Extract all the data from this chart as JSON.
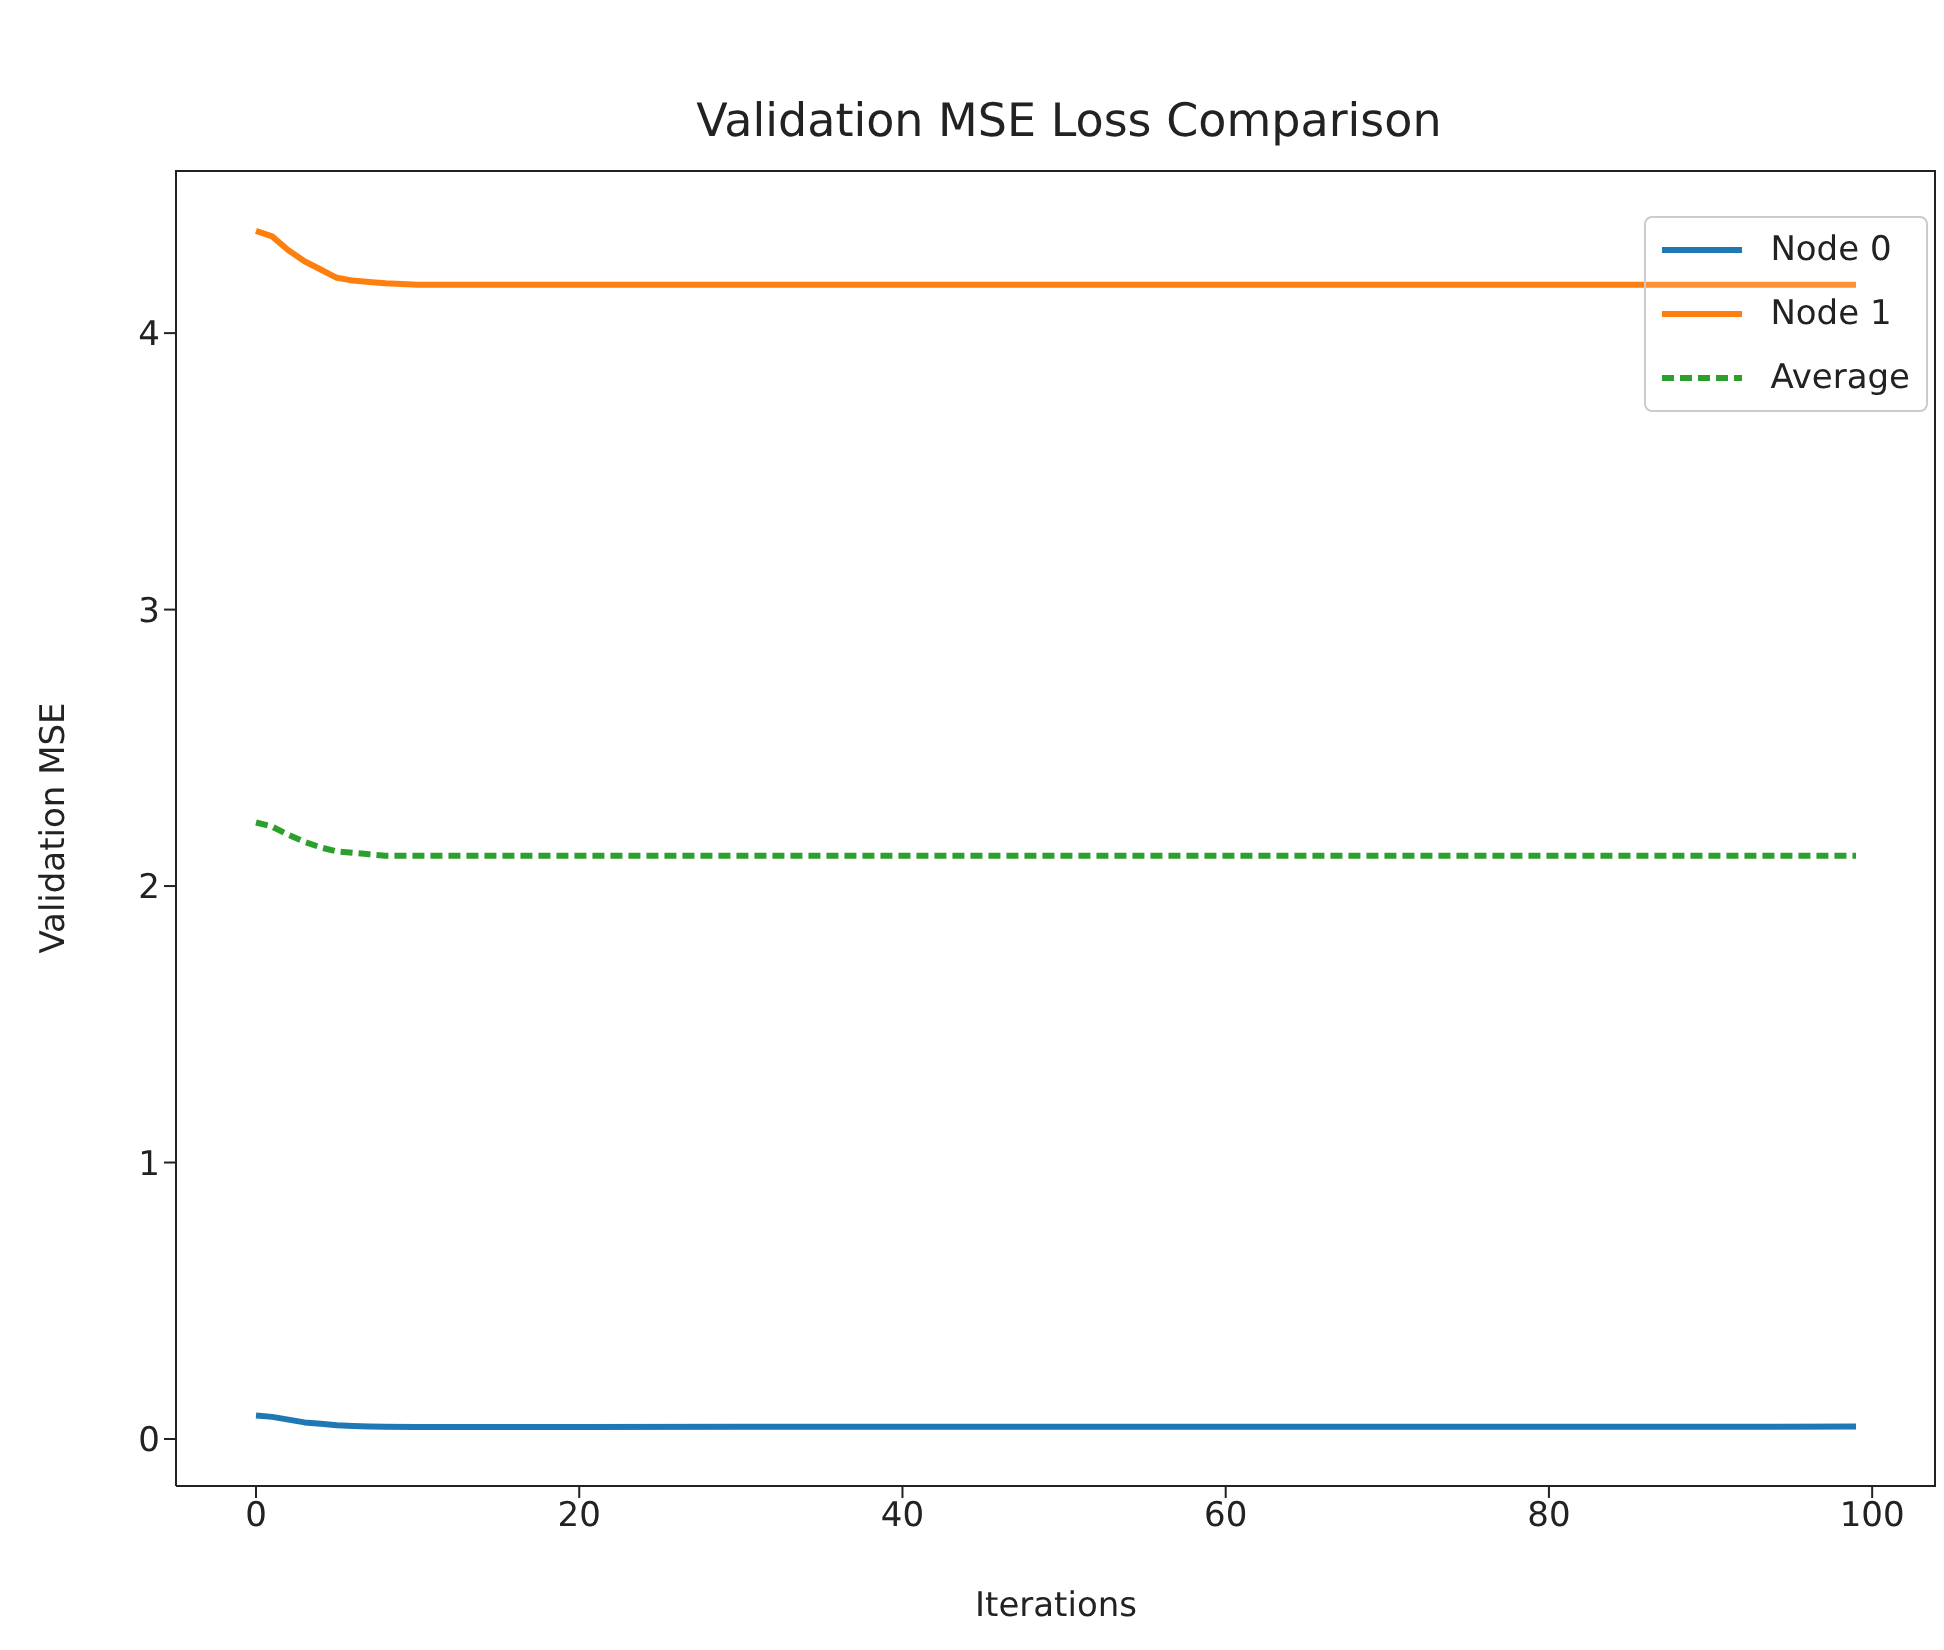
{
  "chart_data": {
    "type": "line",
    "title": "Validation MSE Loss Comparison",
    "xlabel": "Iterations",
    "ylabel": "Validation MSE",
    "x": [
      0,
      1,
      2,
      3,
      4,
      5,
      6,
      7,
      8,
      10,
      12,
      15,
      20,
      30,
      40,
      50,
      60,
      70,
      80,
      90,
      99
    ],
    "series": [
      {
        "name": "Node 0",
        "color": "#1f77b4",
        "values": [
          0.085,
          0.08,
          0.07,
          0.06,
          0.055,
          0.05,
          0.047,
          0.045,
          0.044,
          0.043,
          0.043,
          0.043,
          0.043,
          0.044,
          0.044,
          0.044,
          0.044,
          0.044,
          0.044,
          0.044,
          0.045
        ]
      },
      {
        "name": "Node 1",
        "color": "#ff7f0e",
        "values": [
          4.37,
          4.35,
          4.3,
          4.26,
          4.23,
          4.2,
          4.19,
          4.185,
          4.18,
          4.175,
          4.175,
          4.175,
          4.175,
          4.175,
          4.175,
          4.175,
          4.175,
          4.175,
          4.175,
          4.175,
          4.175
        ]
      },
      {
        "name": "Average",
        "color": "#2ca02c",
        "line_style": "dashed",
        "values": [
          2.23,
          2.215,
          2.185,
          2.16,
          2.14,
          2.125,
          2.12,
          2.115,
          2.11,
          2.11,
          2.11,
          2.11,
          2.11,
          2.11,
          2.11,
          2.11,
          2.11,
          2.11,
          2.11,
          2.11,
          2.11
        ]
      }
    ],
    "xlim": [
      -4.95,
      103.95
    ],
    "xticks": [
      0,
      20,
      40,
      60,
      80,
      100
    ],
    "ylim": [
      -0.17,
      4.59
    ],
    "yticks": [
      0,
      1,
      2,
      3,
      4
    ],
    "legend": "top right",
    "marker": "none",
    "line_style": "solid"
  }
}
